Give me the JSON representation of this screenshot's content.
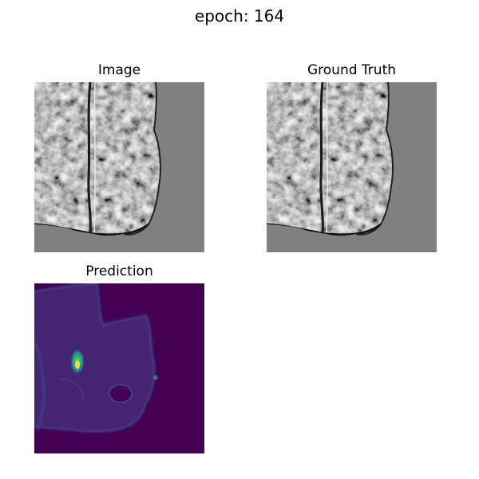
{
  "figure": {
    "suptitle": "epoch: 164",
    "panels": [
      {
        "title": "Image",
        "kind": "mri-grayscale",
        "background": "#808080"
      },
      {
        "title": "Ground Truth",
        "kind": "mri-grayscale",
        "background": "#808080"
      },
      {
        "title": "Prediction",
        "kind": "heatmap-viridis",
        "background": "#440154"
      }
    ]
  }
}
